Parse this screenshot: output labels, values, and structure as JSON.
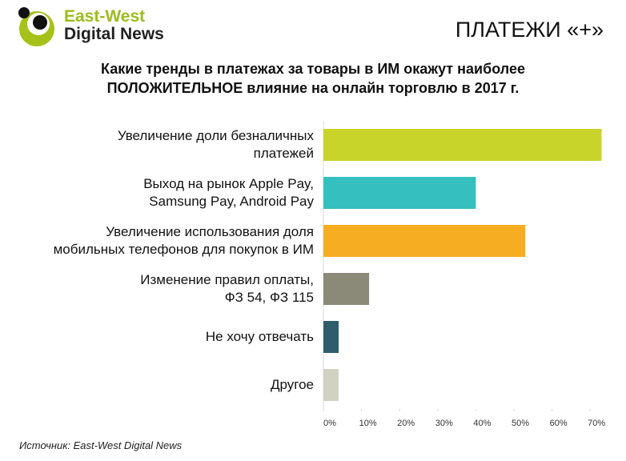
{
  "logo": {
    "line1": "East-West",
    "line2": "Digital News"
  },
  "header": {
    "title": "ПЛАТЕЖИ «+»"
  },
  "chart_data": {
    "type": "bar",
    "orientation": "horizontal",
    "title": "Какие тренды в платежах за товары в ИМ окажут наиболее",
    "title_bold": "ПОЛОЖИТЕЛЬНОЕ",
    "title_rest": "влияние на онлайн торговлю в 2017 г.",
    "categories": [
      "Увеличение доли безналичных\nплатежей",
      "Выход на рынок Apple Pay,\nSamsung Pay, Android Pay",
      "Увеличение использования доля\nмобильных телефонов для покупок в ИМ",
      "Изменение правил оплаты,\nФЗ 54, ФЗ 115",
      "Не хочу отвечать",
      "Другое"
    ],
    "values": [
      73,
      40,
      53,
      12,
      4,
      4
    ],
    "colors": [
      "#c9d42b",
      "#35bfbf",
      "#f6ad22",
      "#8b8a79",
      "#2e5e6c",
      "#d2d2c3"
    ],
    "xlim": [
      0,
      75
    ],
    "xticks": [
      {
        "value": 0,
        "label": "0%"
      },
      {
        "value": 10,
        "label": "10%"
      },
      {
        "value": 20,
        "label": "20%"
      },
      {
        "value": 30,
        "label": "30%"
      },
      {
        "value": 40,
        "label": "40%"
      },
      {
        "value": 50,
        "label": "50%"
      },
      {
        "value": 60,
        "label": "60%"
      },
      {
        "value": 70,
        "label": "70%"
      }
    ],
    "grid": false
  },
  "source": "Источник:  East-West Digital News"
}
